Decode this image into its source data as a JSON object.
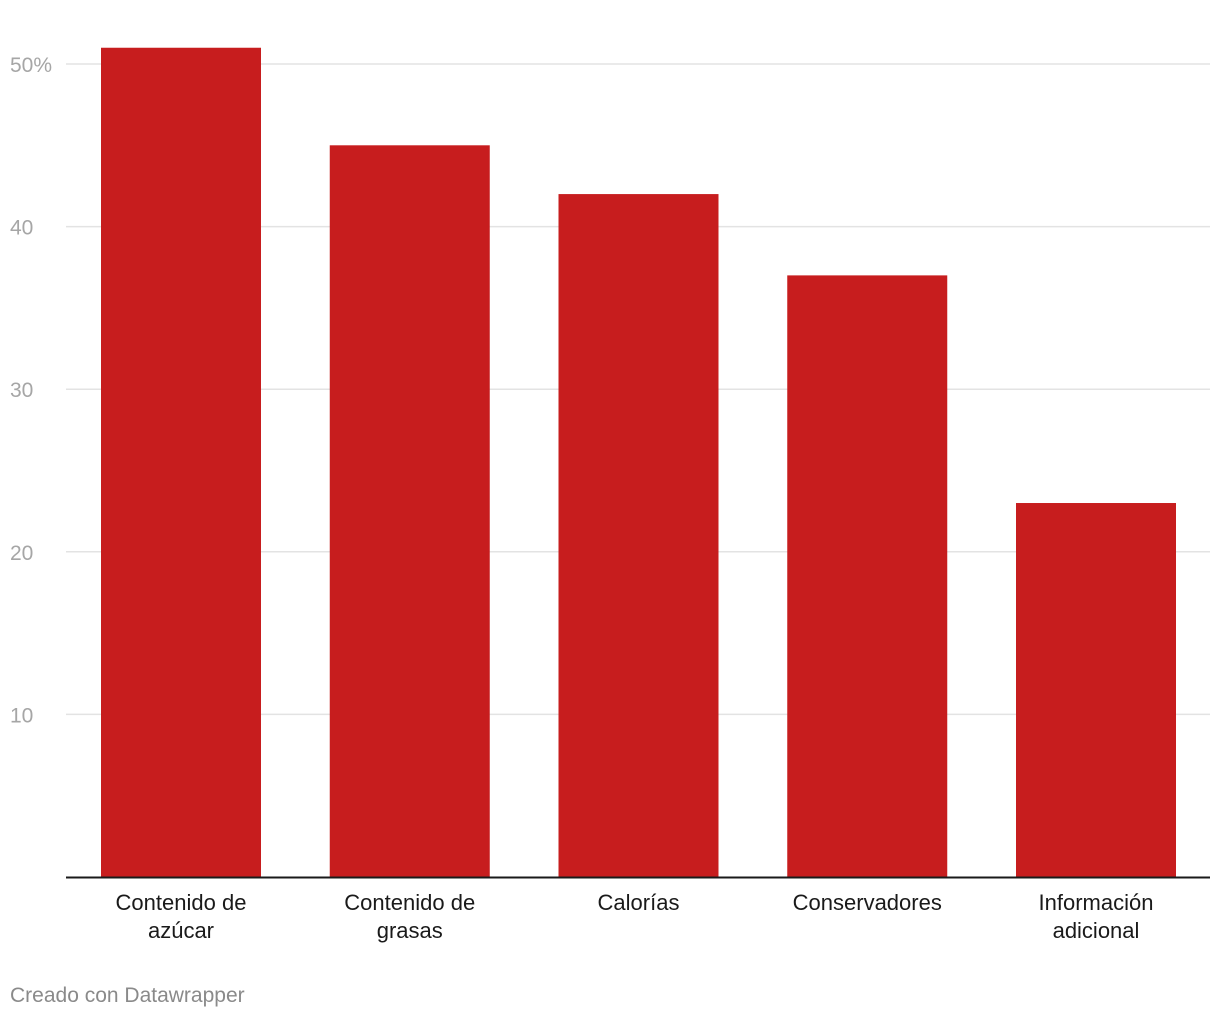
{
  "chart_data": {
    "type": "bar",
    "title": "",
    "xlabel": "",
    "ylabel": "",
    "categories": [
      [
        "Contenido de",
        "azúcar"
      ],
      [
        "Contenido de",
        "grasas"
      ],
      [
        "Calorías"
      ],
      [
        "Conservadores"
      ],
      [
        "Información",
        "adicional"
      ]
    ],
    "values": [
      51,
      45,
      42,
      37,
      23
    ],
    "ylim": [
      0,
      50
    ],
    "yticks": [
      10,
      20,
      30,
      40,
      50
    ],
    "ytick_labels": [
      "10",
      "20",
      "30",
      "40",
      "50%"
    ],
    "grid": true,
    "bar_color": "#c71d1e",
    "grid_color": "#e3e3e3",
    "tick_label_color": "#a6a6a6",
    "category_label_color": "#1a1a1a",
    "baseline_color": "#1a1a1a"
  },
  "footer": {
    "credit": "Creado con Datawrapper"
  }
}
